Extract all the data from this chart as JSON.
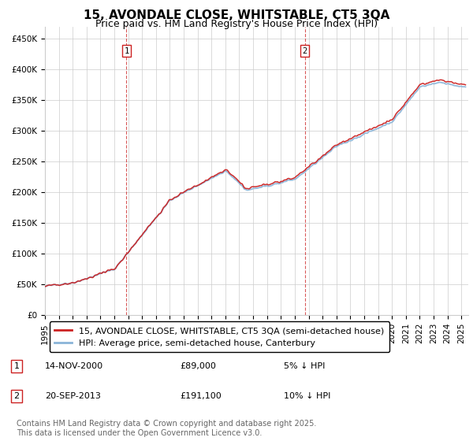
{
  "title": "15, AVONDALE CLOSE, WHITSTABLE, CT5 3QA",
  "subtitle": "Price paid vs. HM Land Registry's House Price Index (HPI)",
  "ylabel_ticks": [
    "£0",
    "£50K",
    "£100K",
    "£150K",
    "£200K",
    "£250K",
    "£300K",
    "£350K",
    "£400K",
    "£450K"
  ],
  "ytick_values": [
    0,
    50000,
    100000,
    150000,
    200000,
    250000,
    300000,
    350000,
    400000,
    450000
  ],
  "ylim": [
    0,
    470000
  ],
  "xlim_start": 1995.0,
  "xlim_end": 2025.5,
  "purchase1_date": 2000.87,
  "purchase1_price": 89000,
  "purchase2_date": 2013.72,
  "purchase2_price": 191100,
  "hpi_color": "#8ab4d8",
  "price_color": "#cc2222",
  "vline_color": "#cc2222",
  "background_color": "#ffffff",
  "grid_color": "#cccccc",
  "legend_label_price": "15, AVONDALE CLOSE, WHITSTABLE, CT5 3QA (semi-detached house)",
  "legend_label_hpi": "HPI: Average price, semi-detached house, Canterbury",
  "footnote": "Contains HM Land Registry data © Crown copyright and database right 2025.\nThis data is licensed under the Open Government Licence v3.0.",
  "title_fontsize": 11,
  "subtitle_fontsize": 9,
  "tick_fontsize": 7.5,
  "legend_fontsize": 8,
  "annotation_fontsize": 8,
  "footnote_fontsize": 7
}
